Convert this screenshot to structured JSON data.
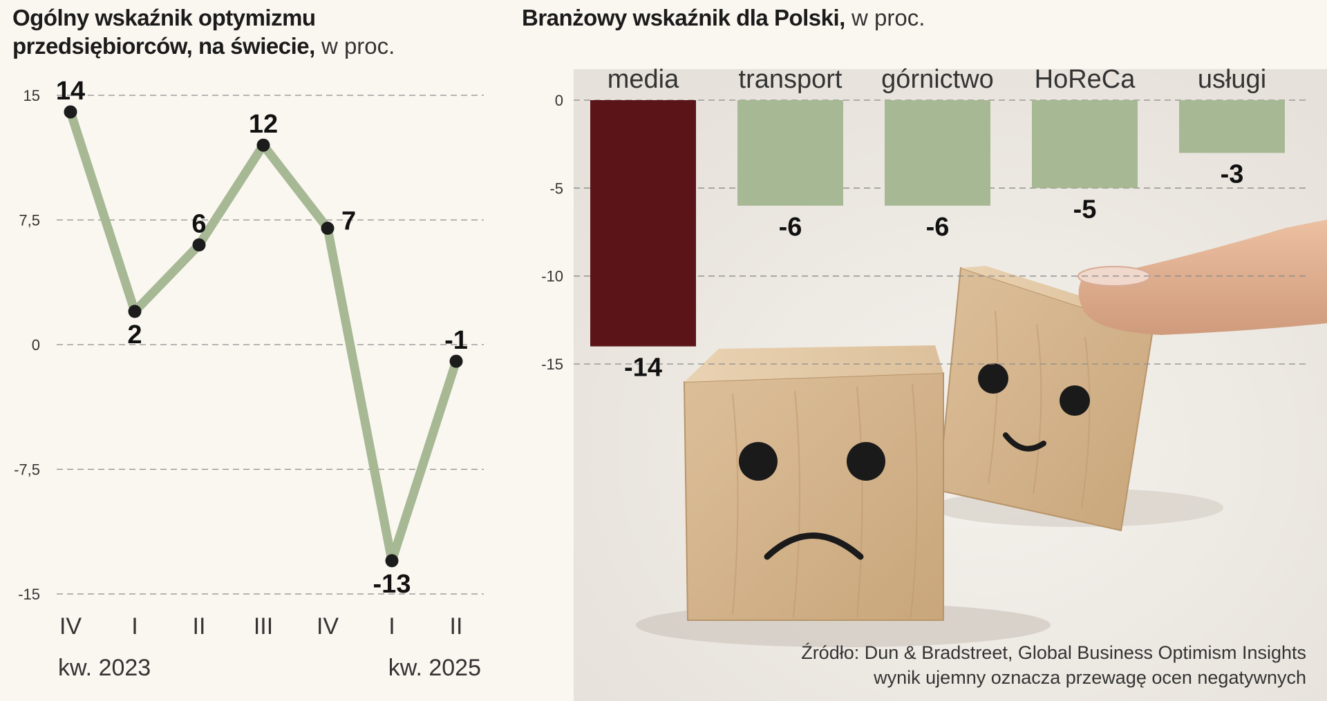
{
  "left_title": {
    "bold": "Ogólny wskaźnik optymizmu przedsiębiorców, na świecie,",
    "normal": " w proc."
  },
  "right_title": {
    "bold": "Branżowy wskaźnik dla Polski,",
    "normal": " w proc."
  },
  "chart_data": [
    {
      "type": "line",
      "title": "Ogólny wskaźnik optymizmu przedsiębiorców, na świecie, w proc.",
      "categories": [
        "IV",
        "I",
        "II",
        "III",
        "IV",
        "I",
        "II"
      ],
      "values": [
        14,
        2,
        6,
        12,
        7,
        -13,
        -1
      ],
      "value_labels": [
        "14",
        "2",
        "6",
        "12",
        "7",
        "-13",
        "-1"
      ],
      "ylim": [
        -15,
        15
      ],
      "yticks": [
        15,
        7.5,
        0,
        -7.5,
        -15
      ],
      "ytick_labels": [
        "15",
        "7,5",
        "0",
        "-7,5",
        "-15"
      ],
      "period_labels": [
        "kw. 2023",
        "kw. 2025"
      ],
      "line_color": "#a7b894",
      "marker_color": "#1c1c1c",
      "grid": true
    },
    {
      "type": "bar",
      "title": "Branżowy wskaźnik dla Polski, w proc.",
      "categories": [
        "media",
        "transport",
        "górnictwo",
        "HoReCa",
        "usługi"
      ],
      "values": [
        -14,
        -6,
        -6,
        -5,
        -3
      ],
      "value_labels": [
        "-14",
        "-6",
        "-6",
        "-5",
        "-3"
      ],
      "colors": [
        "#5b1519",
        "#a7b894",
        "#a7b894",
        "#a7b894",
        "#a7b894"
      ],
      "ylim": [
        -15,
        0
      ],
      "yticks": [
        0,
        -5,
        -10,
        -15
      ],
      "ytick_labels": [
        "0",
        "-5",
        "-10",
        "-15"
      ],
      "grid": true
    }
  ],
  "source": {
    "line1": "Źródło: Dun & Bradstreet, Global Business Optimism Insights",
    "line2": "wynik ujemny oznacza przewagę ocen negatywnych"
  }
}
